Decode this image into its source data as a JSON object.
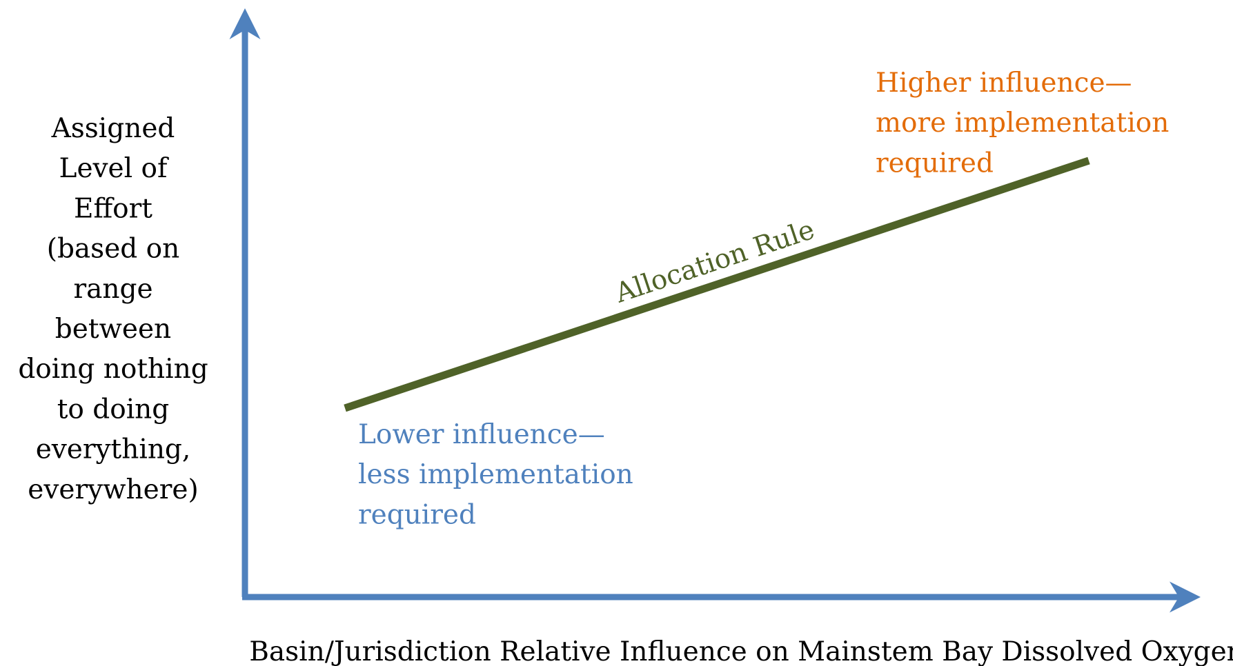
{
  "y_axis_label": [
    "Assigned",
    "Level of",
    "Effort",
    "(based on",
    "range",
    "between",
    "doing nothing",
    "to doing",
    "everything,",
    "everywhere)"
  ],
  "x_axis_label": "Basin/Jurisdiction Relative Influence on Mainstem Bay Dissolved Oxygen",
  "line_label": "Allocation Rule",
  "high_note": [
    "Higher influence—",
    "more implementation",
    "required"
  ],
  "low_note": [
    "Lower influence—",
    "less implementation",
    "required"
  ]
}
